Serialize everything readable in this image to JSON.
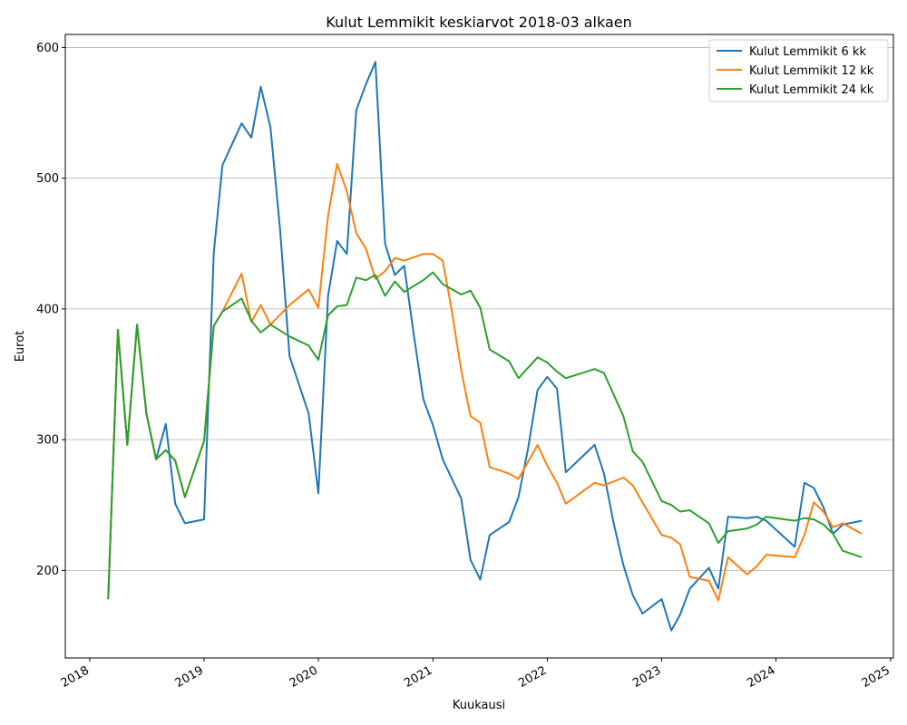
{
  "chart_data": {
    "type": "line",
    "title": "Kulut Lemmikit keskiarvot 2018-03 alkaen",
    "xlabel": "Kuukausi",
    "ylabel": "Eurot",
    "xlim": [
      "2017-10-15",
      "2025-01-10"
    ],
    "ylim": [
      133,
      610
    ],
    "x_ticks": [
      "2018-01-01",
      "2019-01-01",
      "2020-01-01",
      "2021-01-01",
      "2022-01-01",
      "2023-01-01",
      "2024-01-01",
      "2025-01-01"
    ],
    "x_tick_labels": [
      "2018",
      "2019",
      "2020",
      "2021",
      "2022",
      "2023",
      "2024",
      "2025"
    ],
    "y_ticks": [
      200,
      300,
      400,
      500,
      600
    ],
    "y_tick_labels": [
      "200",
      "300",
      "400",
      "500",
      "600"
    ],
    "grid": "y",
    "legend_position": "top-right",
    "series": [
      {
        "name": "Kulut Lemmikit 6 kk",
        "color": "#1f77b4",
        "points": [
          [
            "2018-03-01",
            178
          ],
          [
            "2018-04-01",
            384
          ],
          [
            "2018-05-01",
            296
          ],
          [
            "2018-06-01",
            388
          ],
          [
            "2018-07-01",
            320
          ],
          [
            "2018-08-01",
            285
          ],
          [
            "2018-09-01",
            312
          ],
          [
            "2018-10-01",
            251
          ],
          [
            "2018-11-01",
            236
          ],
          [
            "2019-01-01",
            239
          ],
          [
            "2019-02-01",
            443
          ],
          [
            "2019-03-01",
            510
          ],
          [
            "2019-05-01",
            542
          ],
          [
            "2019-06-01",
            531
          ],
          [
            "2019-07-01",
            570
          ],
          [
            "2019-08-01",
            539
          ],
          [
            "2019-09-01",
            460
          ],
          [
            "2019-10-01",
            364
          ],
          [
            "2019-12-01",
            320
          ],
          [
            "2020-01-01",
            259
          ],
          [
            "2020-02-01",
            410
          ],
          [
            "2020-03-01",
            452
          ],
          [
            "2020-04-01",
            442
          ],
          [
            "2020-05-01",
            552
          ],
          [
            "2020-06-01",
            572
          ],
          [
            "2020-07-01",
            589
          ],
          [
            "2020-08-01",
            450
          ],
          [
            "2020-09-01",
            426
          ],
          [
            "2020-10-01",
            433
          ],
          [
            "2020-11-01",
            380
          ],
          [
            "2020-12-01",
            331
          ],
          [
            "2021-01-01",
            311
          ],
          [
            "2021-02-01",
            285
          ],
          [
            "2021-04-01",
            255
          ],
          [
            "2021-05-01",
            208
          ],
          [
            "2021-06-01",
            193
          ],
          [
            "2021-07-01",
            227
          ],
          [
            "2021-09-01",
            237
          ],
          [
            "2021-10-01",
            256
          ],
          [
            "2021-11-01",
            294
          ],
          [
            "2021-12-01",
            338
          ],
          [
            "2022-01-01",
            348
          ],
          [
            "2022-02-01",
            339
          ],
          [
            "2022-03-01",
            275
          ],
          [
            "2022-06-01",
            296
          ],
          [
            "2022-07-01",
            274
          ],
          [
            "2022-08-01",
            236
          ],
          [
            "2022-09-01",
            204
          ],
          [
            "2022-10-01",
            181
          ],
          [
            "2022-11-01",
            167
          ],
          [
            "2023-01-01",
            178
          ],
          [
            "2023-02-01",
            154
          ],
          [
            "2023-03-01",
            166
          ],
          [
            "2023-04-01",
            186
          ],
          [
            "2023-06-01",
            202
          ],
          [
            "2023-07-01",
            186
          ],
          [
            "2023-08-01",
            241
          ],
          [
            "2023-10-01",
            240
          ],
          [
            "2023-11-01",
            241
          ],
          [
            "2023-12-01",
            238
          ],
          [
            "2024-03-01",
            218
          ],
          [
            "2024-04-01",
            267
          ],
          [
            "2024-05-01",
            263
          ],
          [
            "2024-06-01",
            248
          ],
          [
            "2024-07-01",
            228
          ],
          [
            "2024-08-01",
            235
          ],
          [
            "2024-10-01",
            238
          ]
        ]
      },
      {
        "name": "Kulut Lemmikit 12 kk",
        "color": "#ff7f0e",
        "points": [
          [
            "2018-03-01",
            178
          ],
          [
            "2018-04-01",
            384
          ],
          [
            "2018-05-01",
            296
          ],
          [
            "2018-06-01",
            388
          ],
          [
            "2018-07-01",
            320
          ],
          [
            "2018-08-01",
            285
          ],
          [
            "2018-09-01",
            292
          ],
          [
            "2018-10-01",
            284
          ],
          [
            "2018-11-01",
            256
          ],
          [
            "2019-01-01",
            299
          ],
          [
            "2019-02-01",
            387
          ],
          [
            "2019-03-01",
            398
          ],
          [
            "2019-05-01",
            427
          ],
          [
            "2019-06-01",
            390
          ],
          [
            "2019-07-01",
            403
          ],
          [
            "2019-08-01",
            388
          ],
          [
            "2019-10-01",
            403
          ],
          [
            "2019-12-01",
            415
          ],
          [
            "2020-01-01",
            401
          ],
          [
            "2020-02-01",
            471
          ],
          [
            "2020-03-01",
            511
          ],
          [
            "2020-04-01",
            490
          ],
          [
            "2020-05-01",
            458
          ],
          [
            "2020-06-01",
            446
          ],
          [
            "2020-07-01",
            423
          ],
          [
            "2020-08-01",
            429
          ],
          [
            "2020-09-01",
            439
          ],
          [
            "2020-10-01",
            437
          ],
          [
            "2020-12-01",
            442
          ],
          [
            "2021-01-01",
            442
          ],
          [
            "2021-02-01",
            437
          ],
          [
            "2021-03-01",
            400
          ],
          [
            "2021-04-01",
            353
          ],
          [
            "2021-05-01",
            318
          ],
          [
            "2021-06-01",
            313
          ],
          [
            "2021-07-01",
            279
          ],
          [
            "2021-09-01",
            274
          ],
          [
            "2021-10-01",
            270
          ],
          [
            "2021-12-01",
            296
          ],
          [
            "2022-01-01",
            280
          ],
          [
            "2022-02-01",
            267
          ],
          [
            "2022-03-01",
            251
          ],
          [
            "2022-06-01",
            267
          ],
          [
            "2022-07-01",
            265
          ],
          [
            "2022-09-01",
            271
          ],
          [
            "2022-10-01",
            265
          ],
          [
            "2022-11-01",
            252
          ],
          [
            "2023-01-01",
            227
          ],
          [
            "2023-02-01",
            225
          ],
          [
            "2023-03-01",
            220
          ],
          [
            "2023-04-01",
            195
          ],
          [
            "2023-06-01",
            192
          ],
          [
            "2023-07-01",
            177
          ],
          [
            "2023-08-01",
            210
          ],
          [
            "2023-10-01",
            197
          ],
          [
            "2023-11-01",
            203
          ],
          [
            "2023-12-01",
            212
          ],
          [
            "2024-03-01",
            210
          ],
          [
            "2024-04-01",
            227
          ],
          [
            "2024-05-01",
            252
          ],
          [
            "2024-06-01",
            245
          ],
          [
            "2024-07-01",
            233
          ],
          [
            "2024-08-01",
            236
          ],
          [
            "2024-10-01",
            228
          ]
        ]
      },
      {
        "name": "Kulut Lemmikit 24 kk",
        "color": "#2ca02c",
        "points": [
          [
            "2018-03-01",
            178
          ],
          [
            "2018-04-01",
            384
          ],
          [
            "2018-05-01",
            296
          ],
          [
            "2018-06-01",
            388
          ],
          [
            "2018-07-01",
            320
          ],
          [
            "2018-08-01",
            285
          ],
          [
            "2018-09-01",
            292
          ],
          [
            "2018-10-01",
            284
          ],
          [
            "2018-11-01",
            256
          ],
          [
            "2019-01-01",
            299
          ],
          [
            "2019-02-01",
            387
          ],
          [
            "2019-03-01",
            398
          ],
          [
            "2019-05-01",
            408
          ],
          [
            "2019-06-01",
            391
          ],
          [
            "2019-07-01",
            382
          ],
          [
            "2019-08-01",
            388
          ],
          [
            "2019-10-01",
            379
          ],
          [
            "2019-12-01",
            372
          ],
          [
            "2020-01-01",
            361
          ],
          [
            "2020-02-01",
            395
          ],
          [
            "2020-03-01",
            402
          ],
          [
            "2020-04-01",
            403
          ],
          [
            "2020-05-01",
            424
          ],
          [
            "2020-06-01",
            422
          ],
          [
            "2020-07-01",
            426
          ],
          [
            "2020-08-01",
            410
          ],
          [
            "2020-09-01",
            421
          ],
          [
            "2020-10-01",
            413
          ],
          [
            "2020-12-01",
            422
          ],
          [
            "2021-01-01",
            428
          ],
          [
            "2021-02-01",
            419
          ],
          [
            "2021-04-01",
            411
          ],
          [
            "2021-05-01",
            414
          ],
          [
            "2021-06-01",
            401
          ],
          [
            "2021-07-01",
            369
          ],
          [
            "2021-09-01",
            360
          ],
          [
            "2021-10-01",
            347
          ],
          [
            "2021-12-01",
            363
          ],
          [
            "2022-01-01",
            359
          ],
          [
            "2022-02-01",
            352
          ],
          [
            "2022-03-01",
            347
          ],
          [
            "2022-06-01",
            354
          ],
          [
            "2022-07-01",
            351
          ],
          [
            "2022-09-01",
            318
          ],
          [
            "2022-10-01",
            291
          ],
          [
            "2022-11-01",
            283
          ],
          [
            "2023-01-01",
            253
          ],
          [
            "2023-02-01",
            250
          ],
          [
            "2023-03-01",
            245
          ],
          [
            "2023-04-01",
            246
          ],
          [
            "2023-06-01",
            236
          ],
          [
            "2023-07-01",
            221
          ],
          [
            "2023-08-01",
            230
          ],
          [
            "2023-10-01",
            232
          ],
          [
            "2023-11-01",
            235
          ],
          [
            "2023-12-01",
            241
          ],
          [
            "2024-03-01",
            238
          ],
          [
            "2024-04-01",
            240
          ],
          [
            "2024-05-01",
            239
          ],
          [
            "2024-06-01",
            235
          ],
          [
            "2024-07-01",
            228
          ],
          [
            "2024-08-01",
            215
          ],
          [
            "2024-10-01",
            210
          ]
        ]
      }
    ]
  }
}
